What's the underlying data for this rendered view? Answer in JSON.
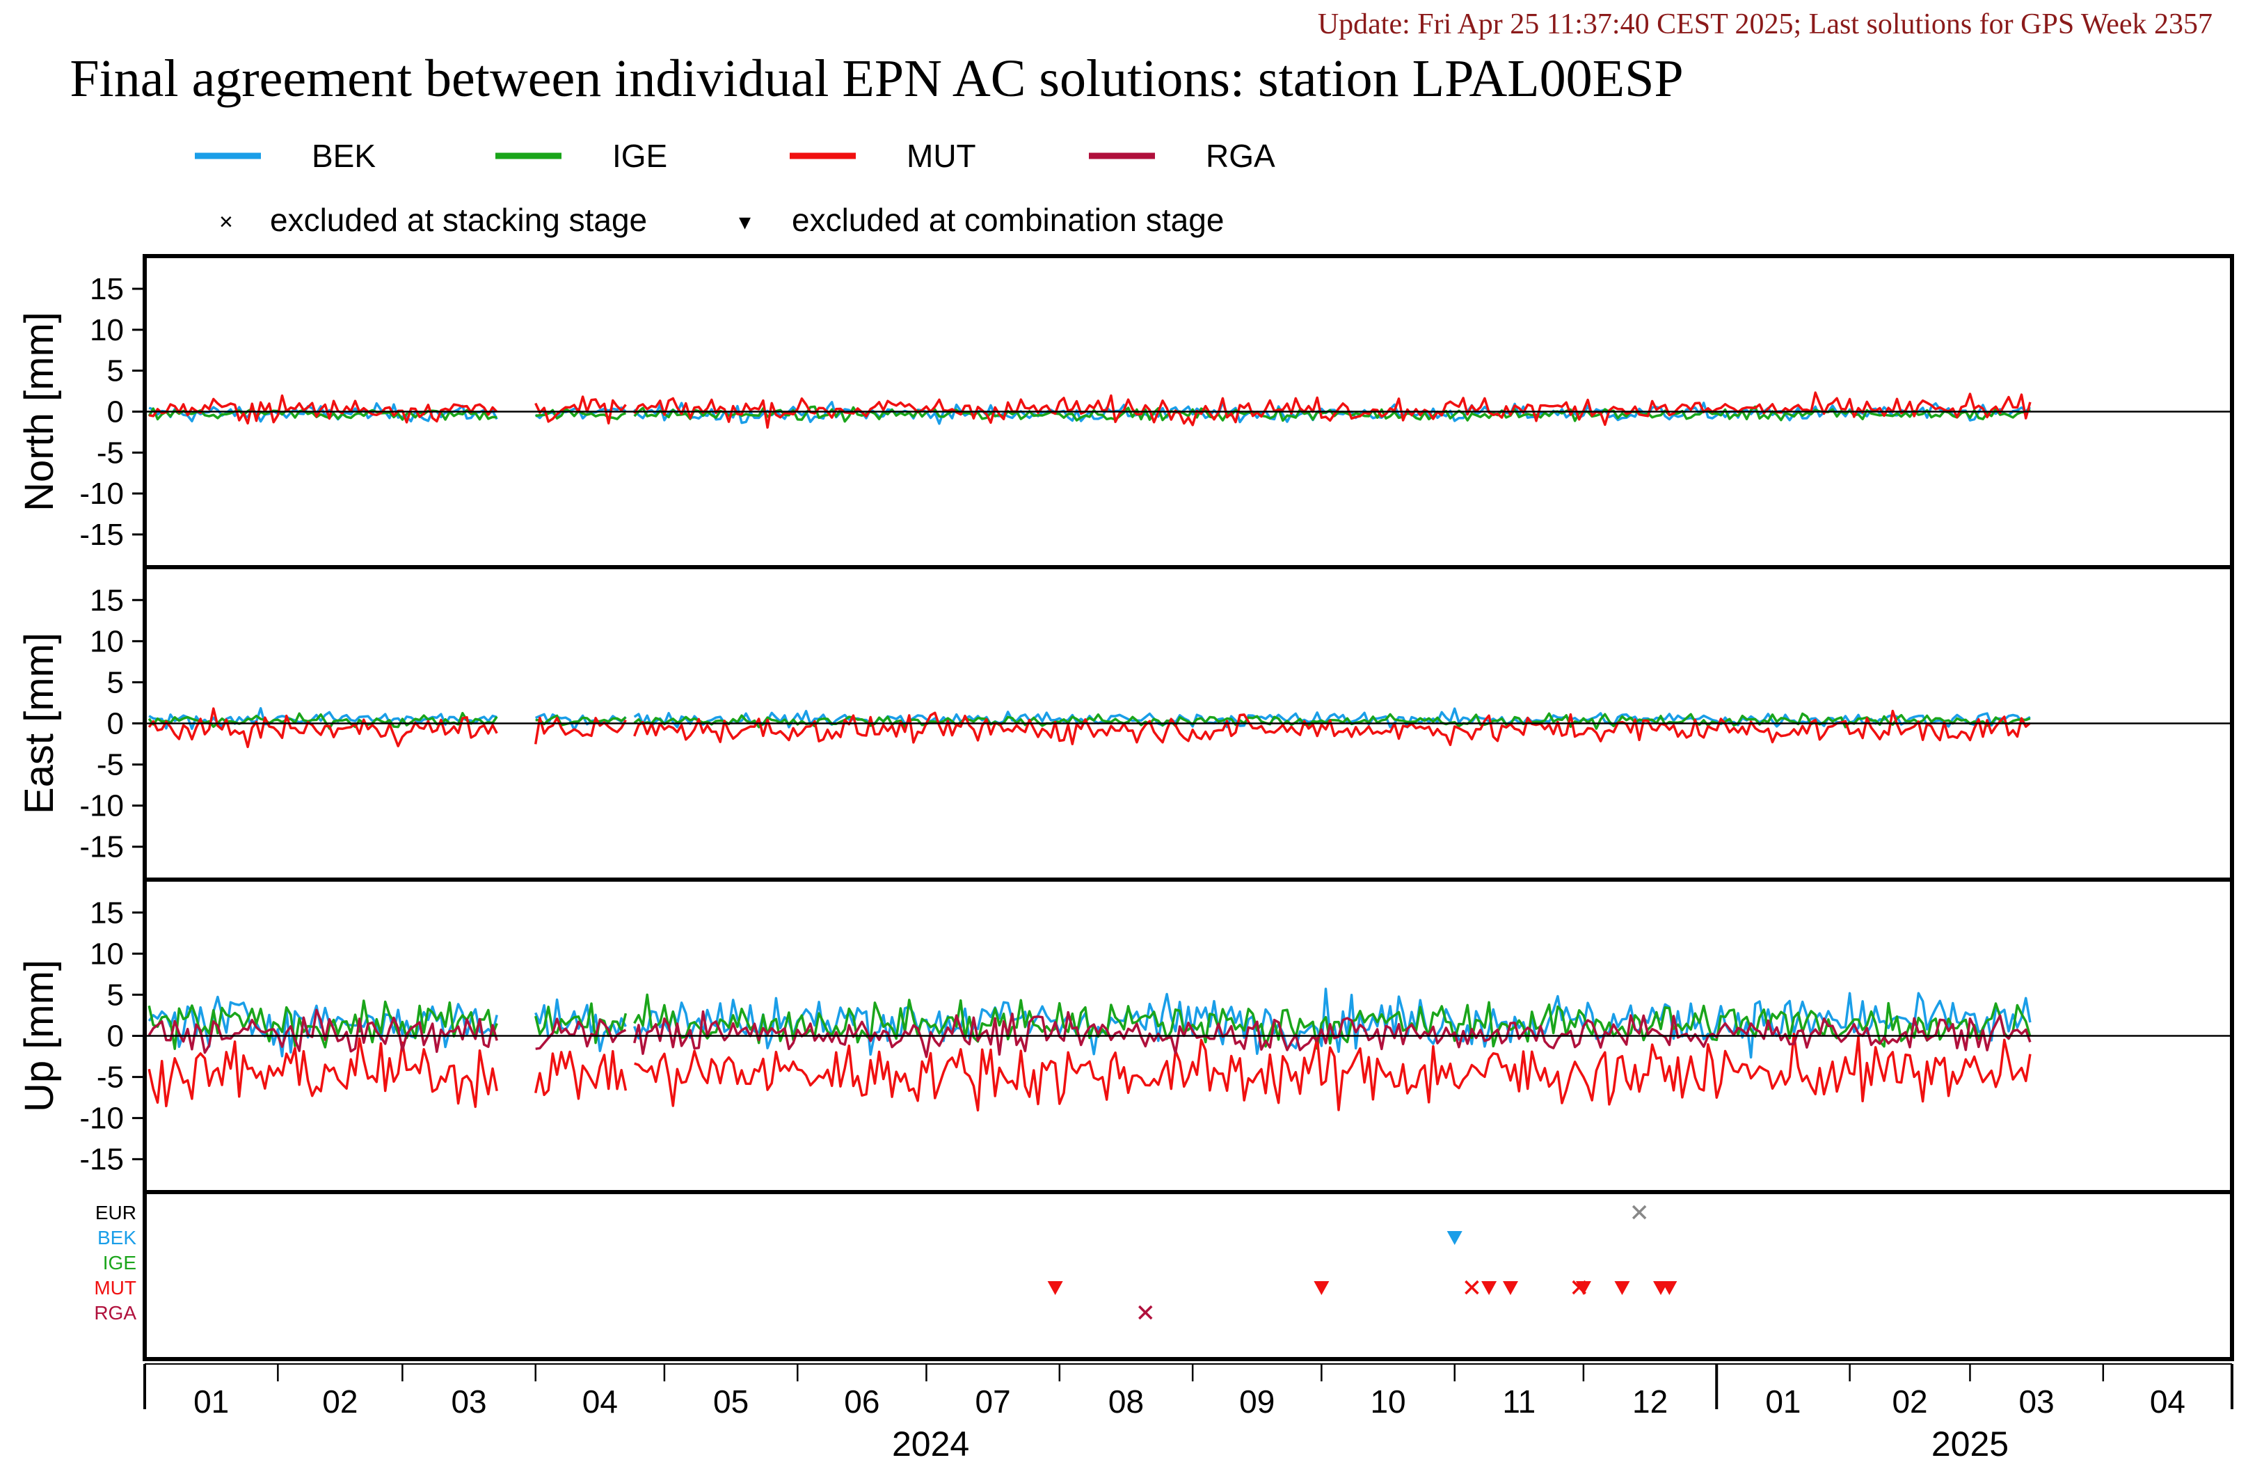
{
  "header": {
    "update_text": "Update: Fri Apr 25 11:37:40 CEST 2025; Last solutions for GPS Week 2357",
    "title": "Final agreement between individual EPN AC solutions: station LPAL00ESP"
  },
  "legend": {
    "series": [
      {
        "name": "BEK",
        "color": "#1a9ee8"
      },
      {
        "name": "IGE",
        "color": "#1aa51a"
      },
      {
        "name": "MUT",
        "color": "#f01010"
      },
      {
        "name": "RGA",
        "color": "#b0103c"
      }
    ],
    "stacking_symbol": "×",
    "stacking_label": "excluded at stacking stage",
    "combination_symbol": "▾",
    "combination_label": "excluded at combination stage"
  },
  "x_axis": {
    "month_labels": [
      "01",
      "02",
      "03",
      "04",
      "05",
      "06",
      "07",
      "08",
      "09",
      "10",
      "11",
      "12",
      "01",
      "02",
      "03",
      "04"
    ],
    "year_labels": [
      "2024",
      "2025"
    ]
  },
  "chart_data": [
    {
      "type": "line",
      "panel": "north",
      "ylabel": "North [mm]",
      "ylim": [
        -19,
        19
      ],
      "yticks": [
        15,
        10,
        5,
        0,
        -5,
        -10,
        -15
      ],
      "x_range": [
        "2024-01-01",
        "2025-04-30"
      ],
      "zero_line": true,
      "series": [
        {
          "name": "BEK",
          "noise_mm": 0.7,
          "offset_mm": -0.2
        },
        {
          "name": "IGE",
          "noise_mm": 0.5,
          "offset_mm": -0.3
        },
        {
          "name": "MUT",
          "noise_mm": 1.0,
          "offset_mm": 0.3
        }
      ]
    },
    {
      "type": "line",
      "panel": "east",
      "ylabel": "East [mm]",
      "ylim": [
        -19,
        19
      ],
      "yticks": [
        15,
        10,
        5,
        0,
        -5,
        -10,
        -15
      ],
      "x_range": [
        "2024-01-01",
        "2025-04-30"
      ],
      "zero_line": true,
      "series": [
        {
          "name": "BEK",
          "noise_mm": 0.6,
          "offset_mm": 0.5
        },
        {
          "name": "IGE",
          "noise_mm": 0.5,
          "offset_mm": 0.3
        },
        {
          "name": "MUT",
          "noise_mm": 1.1,
          "offset_mm": -0.7
        }
      ]
    },
    {
      "type": "line",
      "panel": "up",
      "ylabel": "Up [mm]",
      "ylim": [
        -19,
        19
      ],
      "yticks": [
        15,
        10,
        5,
        0,
        -5,
        -10,
        -15
      ],
      "x_range": [
        "2024-01-01",
        "2025-04-30"
      ],
      "zero_line": true,
      "series": [
        {
          "name": "BEK",
          "noise_mm": 2.2,
          "offset_mm": 1.8
        },
        {
          "name": "IGE",
          "noise_mm": 1.8,
          "offset_mm": 1.5
        },
        {
          "name": "MUT",
          "noise_mm": 2.5,
          "offset_mm": -4.5
        },
        {
          "name": "RGA",
          "noise_mm": 1.5,
          "offset_mm": 0.3
        }
      ]
    }
  ],
  "exclusions": {
    "ac_labels": [
      {
        "name": "EUR",
        "color": "#000000"
      },
      {
        "name": "BEK",
        "color": "#1a9ee8"
      },
      {
        "name": "IGE",
        "color": "#1aa51a"
      },
      {
        "name": "MUT",
        "color": "#f01010"
      },
      {
        "name": "RGA",
        "color": "#b0103c"
      }
    ],
    "markers": [
      {
        "ac": "EUR",
        "date": "2024-12-14",
        "kind": "stacking"
      },
      {
        "ac": "BEK",
        "date": "2024-11-01",
        "kind": "combination"
      },
      {
        "ac": "MUT",
        "date": "2024-07-31",
        "kind": "combination"
      },
      {
        "ac": "MUT",
        "date": "2024-10-01",
        "kind": "combination"
      },
      {
        "ac": "MUT",
        "date": "2024-11-05",
        "kind": "stacking"
      },
      {
        "ac": "MUT",
        "date": "2024-11-09",
        "kind": "combination"
      },
      {
        "ac": "MUT",
        "date": "2024-11-14",
        "kind": "combination"
      },
      {
        "ac": "MUT",
        "date": "2024-11-30",
        "kind": "stacking"
      },
      {
        "ac": "MUT",
        "date": "2024-12-01",
        "kind": "combination"
      },
      {
        "ac": "MUT",
        "date": "2024-12-10",
        "kind": "combination"
      },
      {
        "ac": "MUT",
        "date": "2024-12-19",
        "kind": "combination"
      },
      {
        "ac": "MUT",
        "date": "2024-12-21",
        "kind": "combination"
      },
      {
        "ac": "RGA",
        "date": "2024-08-21",
        "kind": "stacking"
      }
    ]
  }
}
